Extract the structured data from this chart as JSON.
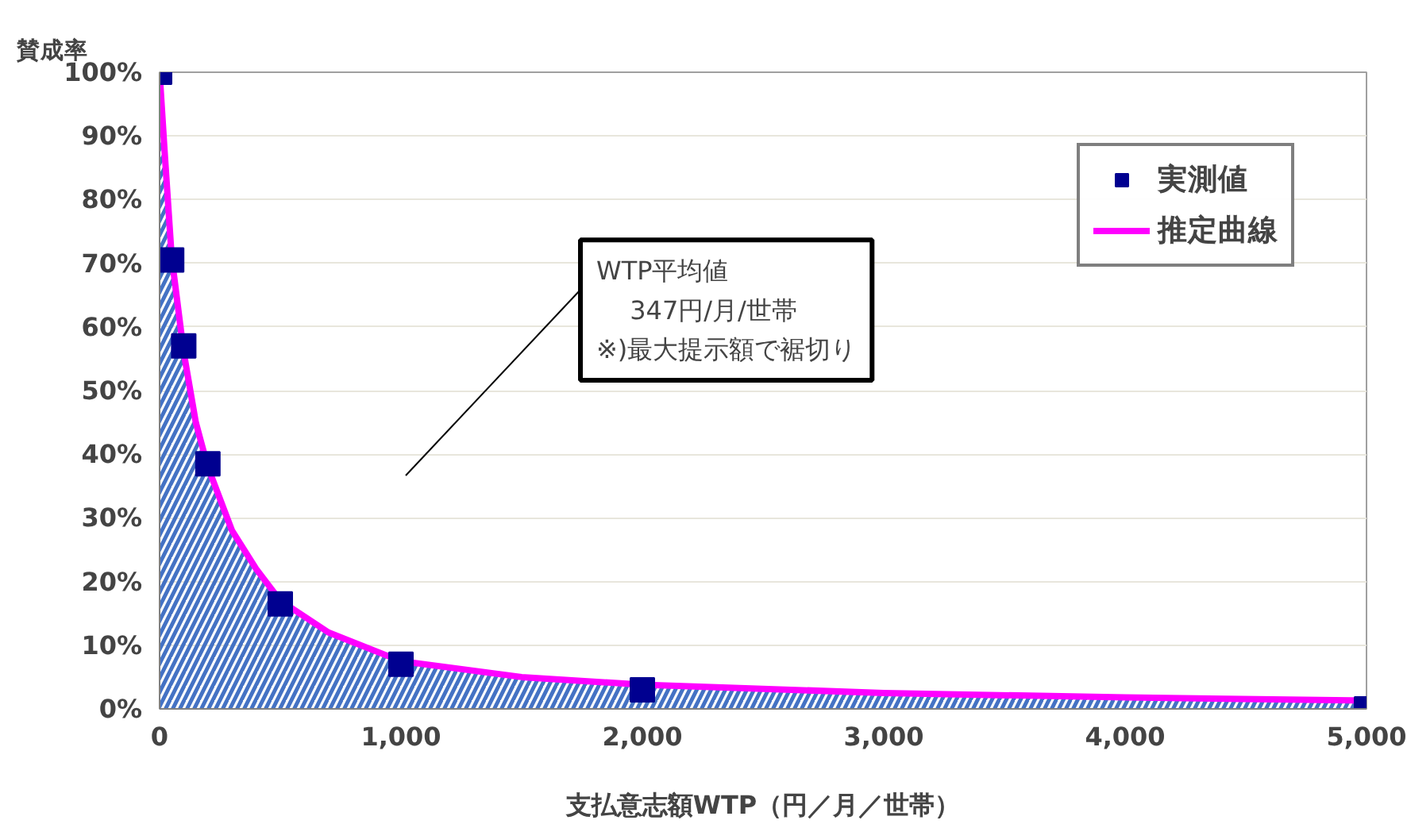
{
  "chart_data": {
    "type": "area",
    "xlabel": "支払意志額WTP（円／月／世帯）",
    "ylabel": "賛成率",
    "xlim": [
      0,
      5000
    ],
    "ylim": [
      0,
      100
    ],
    "xticks": [
      0,
      {
        "value": 1000,
        "label": "1,000"
      },
      {
        "value": 2000,
        "label": "2,000"
      },
      {
        "value": 3000,
        "label": "3,000"
      },
      {
        "value": 4000,
        "label": "4,000"
      },
      {
        "value": 5000,
        "label": "5,000"
      }
    ],
    "yticks": [
      {
        "value": 0,
        "label": "0%"
      },
      {
        "value": 10,
        "label": "10%"
      },
      {
        "value": 20,
        "label": "20%"
      },
      {
        "value": 30,
        "label": "30%"
      },
      {
        "value": 40,
        "label": "40%"
      },
      {
        "value": 50,
        "label": "50%"
      },
      {
        "value": 60,
        "label": "60%"
      },
      {
        "value": 70,
        "label": "70%"
      },
      {
        "value": 80,
        "label": "80%"
      },
      {
        "value": 90,
        "label": "90%"
      },
      {
        "value": 100,
        "label": "100%"
      }
    ],
    "grid": "y",
    "legend": "top right",
    "series": [
      {
        "type": "scatter",
        "name": "実測値",
        "color": "#000090",
        "marker": "square",
        "x": [
          0,
          50,
          100,
          200,
          500,
          1000,
          2000,
          5000
        ],
        "values": [
          100,
          70.5,
          57,
          38.5,
          16.5,
          7,
          3,
          0
        ]
      },
      {
        "name": "推定曲線",
        "color": "#ff00ff",
        "x": [
          0,
          20,
          50,
          100,
          150,
          200,
          300,
          400,
          500,
          700,
          1000,
          1500,
          2000,
          3000,
          4000,
          5000
        ],
        "values": [
          100,
          88,
          71,
          56,
          45,
          38,
          28,
          22,
          17,
          12,
          7.5,
          5,
          3.8,
          2.5,
          1.8,
          1.3
        ]
      }
    ],
    "annotations": [
      "WTP平均値\n　 347円/月/世帯\n※)最大提示額で裾切り"
    ]
  }
}
